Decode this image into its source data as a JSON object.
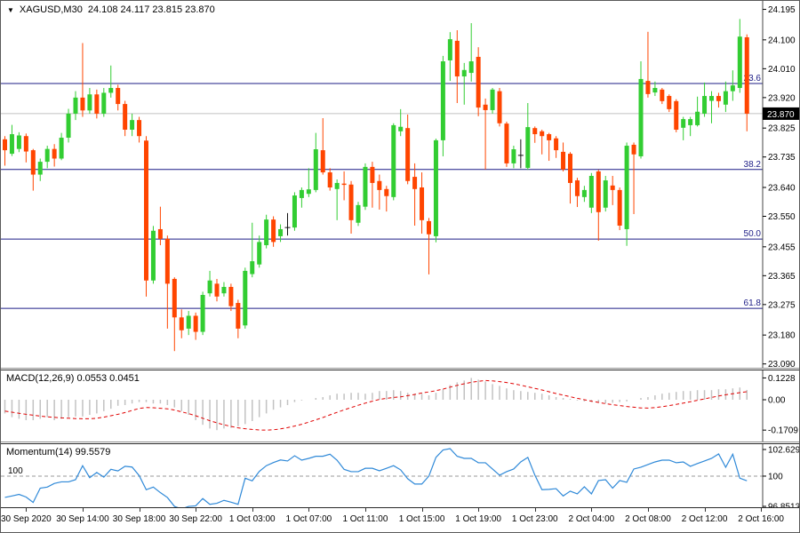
{
  "title": {
    "symbol": "XAGUSD,M30",
    "ohlc_text": "24.108 24.117 23.815 23.870",
    "dropdown_icon": "▼"
  },
  "colors": {
    "candle_up": "#32CD32",
    "candle_down": "#FF4500",
    "candle_doji": "#111111",
    "fib_line": "#1C1C86",
    "current_price_line": "#C0C0C0",
    "badge_bg": "#000000",
    "badge_text": "#FFFFFF",
    "macd_hist": "#C2C2C2",
    "macd_signal": "#E00000",
    "momentum_line": "#2F89D8",
    "level_line": "#9a9a9a",
    "axis_text": "#000000",
    "axis_line": "#444444"
  },
  "chart_data": {
    "type": "candlestick",
    "symbol": "XAGUSD",
    "timeframe": "M30",
    "current_price": "23.870",
    "layout": {
      "x_start": 4.5,
      "x_step": 7.95,
      "axis_x": 857,
      "main_height": 413,
      "price_ylim": [
        23.078,
        24.2214
      ],
      "macd_height": 80,
      "macd_ylim": [
        -0.235,
        0.165
      ],
      "mom_height": 71,
      "mom_ylim": [
        97.02,
        103.06
      ]
    },
    "price_axis_labels": [
      "24.195",
      "24.100",
      "24.010",
      "23.920",
      "23.825",
      "23.735",
      "23.640",
      "23.550",
      "23.455",
      "23.365",
      "23.275",
      "23.180",
      "23.090"
    ],
    "fibonacci_levels": [
      {
        "ratio": "23.6",
        "price": 23.964
      },
      {
        "ratio": "38.2",
        "price": 23.696
      },
      {
        "ratio": "50.0",
        "price": 23.479
      },
      {
        "ratio": "61.8",
        "price": 23.263
      }
    ],
    "time_labels": [
      {
        "text": "30 Sep 2020",
        "slot": 3
      },
      {
        "text": "30 Sep 14:00",
        "slot": 11
      },
      {
        "text": "30 Sep 18:00",
        "slot": 19
      },
      {
        "text": "30 Sep 22:00",
        "slot": 27
      },
      {
        "text": "1 Oct 03:00",
        "slot": 35
      },
      {
        "text": "1 Oct 07:00",
        "slot": 43
      },
      {
        "text": "1 Oct 11:00",
        "slot": 51
      },
      {
        "text": "1 Oct 15:00",
        "slot": 59
      },
      {
        "text": "1 Oct 19:00",
        "slot": 67
      },
      {
        "text": "1 Oct 23:00",
        "slot": 75
      },
      {
        "text": "2 Oct 04:00",
        "slot": 83
      },
      {
        "text": "2 Oct 08:00",
        "slot": 91
      },
      {
        "text": "2 Oct 12:00",
        "slot": 99
      },
      {
        "text": "2 Oct 16:00",
        "slot": 107
      }
    ],
    "candles": [
      [
        23.79,
        23.8,
        23.708,
        23.756
      ],
      [
        23.745,
        23.835,
        23.738,
        23.806
      ],
      [
        23.76,
        23.812,
        23.75,
        23.802
      ],
      [
        23.8,
        23.808,
        23.718,
        23.752
      ],
      [
        23.756,
        23.76,
        23.63,
        23.68
      ],
      [
        23.68,
        23.73,
        23.66,
        23.72
      ],
      [
        23.72,
        23.77,
        23.7,
        23.76
      ],
      [
        23.76,
        23.775,
        23.705,
        23.73
      ],
      [
        23.73,
        23.81,
        23.725,
        23.795
      ],
      [
        23.795,
        23.885,
        23.78,
        23.87
      ],
      [
        23.87,
        23.94,
        23.85,
        23.92
      ],
      [
        23.92,
        24.09,
        23.86,
        23.88
      ],
      [
        23.88,
        23.95,
        23.87,
        23.93
      ],
      [
        23.93,
        23.945,
        23.855,
        23.87
      ],
      [
        23.87,
        23.95,
        23.86,
        23.935
      ],
      [
        23.935,
        24.02,
        23.92,
        23.95
      ],
      [
        23.95,
        23.96,
        23.88,
        23.9
      ],
      [
        23.9,
        23.91,
        23.8,
        23.82
      ],
      [
        23.82,
        23.87,
        23.8,
        23.85
      ],
      [
        23.85,
        23.86,
        23.78,
        23.8
      ],
      [
        23.786,
        23.8,
        23.3,
        23.35
      ],
      [
        23.35,
        23.52,
        23.34,
        23.505
      ],
      [
        23.51,
        23.58,
        23.46,
        23.48
      ],
      [
        23.48,
        23.49,
        23.2,
        23.34
      ],
      [
        23.355,
        23.36,
        23.13,
        23.235
      ],
      [
        23.235,
        23.26,
        23.17,
        23.195
      ],
      [
        23.2,
        23.255,
        23.18,
        23.24
      ],
      [
        23.24,
        23.25,
        23.165,
        23.19
      ],
      [
        23.19,
        23.315,
        23.18,
        23.305
      ],
      [
        23.31,
        23.38,
        23.3,
        23.35
      ],
      [
        23.34,
        23.355,
        23.285,
        23.3
      ],
      [
        23.31,
        23.345,
        23.3,
        23.33
      ],
      [
        23.33,
        23.34,
        23.255,
        23.27
      ],
      [
        23.28,
        23.29,
        23.17,
        23.2
      ],
      [
        23.21,
        23.39,
        23.2,
        23.38
      ],
      [
        23.37,
        23.53,
        23.36,
        23.41
      ],
      [
        23.4,
        23.49,
        23.39,
        23.47
      ],
      [
        23.46,
        23.555,
        23.45,
        23.54
      ],
      [
        23.54,
        23.55,
        23.455,
        23.47
      ],
      [
        23.488,
        23.525,
        23.47,
        23.51
      ],
      [
        23.515,
        23.56,
        23.49,
        23.515
      ],
      [
        23.515,
        23.625,
        23.505,
        23.615
      ],
      [
        23.607,
        23.64,
        23.577,
        23.632
      ],
      [
        23.62,
        23.7,
        23.61,
        23.634
      ],
      [
        23.632,
        23.81,
        23.625,
        23.759
      ],
      [
        23.756,
        23.856,
        23.68,
        23.687
      ],
      [
        23.687,
        23.7,
        23.63,
        23.64
      ],
      [
        23.635,
        23.665,
        23.538,
        23.654
      ],
      [
        23.652,
        23.69,
        23.6,
        23.648
      ],
      [
        23.649,
        23.66,
        23.496,
        23.538
      ],
      [
        23.53,
        23.595,
        23.52,
        23.585
      ],
      [
        23.58,
        23.715,
        23.57,
        23.704
      ],
      [
        23.704,
        23.72,
        23.577,
        23.654
      ],
      [
        23.66,
        23.68,
        23.571,
        23.632
      ],
      [
        23.635,
        23.645,
        23.565,
        23.613
      ],
      [
        23.61,
        23.84,
        23.6,
        23.834
      ],
      [
        23.815,
        23.884,
        23.8,
        23.829
      ],
      [
        23.825,
        23.867,
        23.65,
        23.66
      ],
      [
        23.673,
        23.715,
        23.521,
        23.635
      ],
      [
        23.64,
        23.687,
        23.496,
        23.538
      ],
      [
        23.535,
        23.545,
        23.369,
        23.494
      ],
      [
        23.488,
        23.792,
        23.469,
        23.787
      ],
      [
        23.787,
        24.05,
        23.737,
        24.033
      ],
      [
        24.036,
        24.124,
        23.972,
        24.102
      ],
      [
        24.097,
        24.13,
        23.903,
        23.986
      ],
      [
        23.986,
        24.028,
        23.898,
        24.006
      ],
      [
        23.997,
        24.152,
        23.97,
        24.033
      ],
      [
        24.047,
        24.077,
        23.862,
        23.889
      ],
      [
        23.898,
        23.917,
        23.696,
        23.881
      ],
      [
        23.881,
        23.95,
        23.87,
        23.945
      ],
      [
        23.94,
        23.95,
        23.83,
        23.84
      ],
      [
        23.839,
        23.845,
        23.704,
        23.715
      ],
      [
        23.715,
        23.77,
        23.7,
        23.759
      ],
      [
        23.74,
        23.79,
        23.7,
        23.74
      ],
      [
        23.701,
        23.903,
        23.695,
        23.828
      ],
      [
        23.825,
        23.83,
        23.779,
        23.806
      ],
      [
        23.815,
        23.82,
        23.743,
        23.8
      ],
      [
        23.806,
        23.81,
        23.723,
        23.787
      ],
      [
        23.793,
        23.8,
        23.732,
        23.756
      ],
      [
        23.751,
        23.78,
        23.69,
        23.696
      ],
      [
        23.745,
        23.75,
        23.59,
        23.654
      ],
      [
        23.662,
        23.67,
        23.579,
        23.613
      ],
      [
        23.61,
        23.645,
        23.595,
        23.632
      ],
      [
        23.577,
        23.685,
        23.56,
        23.676
      ],
      [
        23.69,
        23.695,
        23.474,
        23.563
      ],
      [
        23.577,
        23.676,
        23.565,
        23.662
      ],
      [
        23.646,
        23.676,
        23.585,
        23.632
      ],
      [
        23.632,
        23.64,
        23.507,
        23.521
      ],
      [
        23.51,
        23.78,
        23.458,
        23.77
      ],
      [
        23.773,
        23.78,
        23.557,
        23.743
      ],
      [
        23.737,
        24.033,
        23.73,
        23.978
      ],
      [
        23.972,
        24.125,
        23.92,
        23.931
      ],
      [
        23.936,
        23.97,
        23.925,
        23.95
      ],
      [
        23.945,
        23.95,
        23.9,
        23.909
      ],
      [
        23.925,
        23.93,
        23.875,
        23.884
      ],
      [
        23.909,
        23.915,
        23.812,
        23.82
      ],
      [
        23.826,
        23.86,
        23.787,
        23.853
      ],
      [
        23.834,
        23.86,
        23.8,
        23.853
      ],
      [
        23.834,
        23.923,
        23.83,
        23.876
      ],
      [
        23.87,
        23.967,
        23.86,
        23.925
      ],
      [
        23.91,
        23.94,
        23.84,
        23.925
      ],
      [
        23.925,
        23.935,
        23.889,
        23.909
      ],
      [
        23.898,
        23.97,
        23.875,
        23.94
      ],
      [
        23.94,
        24.005,
        23.91,
        23.958
      ],
      [
        23.95,
        24.165,
        23.935,
        24.11
      ],
      [
        24.108,
        24.117,
        23.815,
        23.87
      ]
    ],
    "macd": {
      "title": "MACD(12,26,9)",
      "current": "0.0553 0.0451",
      "axis_labels": [
        "0.1228",
        "0.00",
        "-0.1709"
      ],
      "axis_values": [
        0.1228,
        0.0,
        -0.1709
      ],
      "hist": [
        -0.077,
        -0.098,
        -0.107,
        -0.115,
        -0.115,
        -0.107,
        -0.098,
        -0.115,
        -0.107,
        -0.098,
        -0.094,
        -0.094,
        -0.085,
        -0.077,
        -0.064,
        -0.051,
        -0.034,
        -0.03,
        -0.021,
        -0.013,
        -0.013,
        -0.021,
        -0.021,
        -0.03,
        -0.043,
        -0.064,
        -0.085,
        -0.115,
        -0.141,
        -0.162,
        -0.171,
        -0.162,
        -0.158,
        -0.149,
        -0.137,
        -0.12,
        -0.098,
        -0.077,
        -0.056,
        -0.043,
        -0.03,
        -0.013,
        -0.004,
        0.0,
        0.01,
        0.015,
        0.025,
        0.034,
        0.034,
        0.039,
        0.039,
        0.034,
        0.039,
        0.049,
        0.049,
        0.054,
        0.049,
        0.039,
        0.034,
        0.034,
        0.025,
        0.039,
        0.059,
        0.083,
        0.098,
        0.108,
        0.1228,
        0.113,
        0.103,
        0.088,
        0.078,
        0.064,
        0.054,
        0.049,
        0.044,
        0.039,
        0.034,
        0.025,
        0.015,
        0.01,
        0.005,
        -0.004,
        -0.009,
        -0.013,
        -0.017,
        -0.021,
        -0.017,
        -0.013,
        -0.009,
        0.0,
        0.01,
        0.015,
        0.025,
        0.034,
        0.039,
        0.044,
        0.049,
        0.049,
        0.054,
        0.054,
        0.054,
        0.059,
        0.059,
        0.064,
        0.069,
        0.0553
      ],
      "signal": [
        -0.064,
        -0.07,
        -0.076,
        -0.082,
        -0.087,
        -0.092,
        -0.096,
        -0.099,
        -0.102,
        -0.104,
        -0.106,
        -0.107,
        -0.107,
        -0.104,
        -0.098,
        -0.09,
        -0.082,
        -0.072,
        -0.06,
        -0.049,
        -0.044,
        -0.045,
        -0.048,
        -0.051,
        -0.058,
        -0.068,
        -0.078,
        -0.09,
        -0.104,
        -0.118,
        -0.13,
        -0.141,
        -0.15,
        -0.158,
        -0.163,
        -0.167,
        -0.17,
        -0.1709,
        -0.169,
        -0.164,
        -0.157,
        -0.148,
        -0.138,
        -0.126,
        -0.113,
        -0.1,
        -0.085,
        -0.071,
        -0.057,
        -0.044,
        -0.031,
        -0.019,
        -0.008,
        0.002,
        0.008,
        0.013,
        0.016,
        0.023,
        0.03,
        0.038,
        0.044,
        0.051,
        0.06,
        0.071,
        0.081,
        0.09,
        0.098,
        0.104,
        0.108,
        0.106,
        0.102,
        0.097,
        0.09,
        0.082,
        0.073,
        0.064,
        0.055,
        0.045,
        0.035,
        0.026,
        0.017,
        0.008,
        0.0,
        -0.008,
        -0.015,
        -0.022,
        -0.028,
        -0.033,
        -0.038,
        -0.042,
        -0.046,
        -0.047,
        -0.044,
        -0.039,
        -0.033,
        -0.026,
        -0.019,
        -0.011,
        -0.003,
        0.005,
        0.013,
        0.021,
        0.028,
        0.034,
        0.04,
        0.0451
      ]
    },
    "momentum": {
      "title": "Momentum(14)",
      "current": "99.5579",
      "level": 100,
      "level_label": "100",
      "axis_labels": [
        "102.629",
        "100",
        "96.8513"
      ],
      "axis_values": [
        102.629,
        100,
        96.8513
      ],
      "series": [
        97.96,
        98.1,
        98.25,
        98.0,
        97.48,
        98.85,
        98.95,
        99.3,
        99.45,
        99.45,
        99.66,
        101.0,
        99.85,
        100.35,
        99.9,
        100.65,
        100.5,
        100.94,
        100.87,
        100.05,
        98.7,
        98.95,
        98.42,
        97.95,
        97.1,
        96.8513,
        97.1,
        97.15,
        97.85,
        97.3,
        97.4,
        97.68,
        97.5,
        97.3,
        99.8,
        99.55,
        100.45,
        101.0,
        101.3,
        101.55,
        101.45,
        101.95,
        101.53,
        101.7,
        101.9,
        101.9,
        102.1,
        101.53,
        100.65,
        100.43,
        100.43,
        100.75,
        100.75,
        100.51,
        100.75,
        101.0,
        100.6,
        99.75,
        99.24,
        99.24,
        100.0,
        101.8,
        102.5,
        102.629,
        101.9,
        101.7,
        101.7,
        101.28,
        101.28,
        100.68,
        100.09,
        100.43,
        100.68,
        101.36,
        101.79,
        100.09,
        98.7,
        98.73,
        98.8,
        98.1,
        98.56,
        98.3,
        98.98,
        98.3,
        99.58,
        99.66,
        98.85,
        99.58,
        99.41,
        100.68,
        100.85,
        101.11,
        101.36,
        101.53,
        101.53,
        101.28,
        101.36,
        100.94,
        101.2,
        101.45,
        101.7,
        102.13,
        100.85,
        102.1,
        99.8,
        99.5579
      ]
    }
  }
}
